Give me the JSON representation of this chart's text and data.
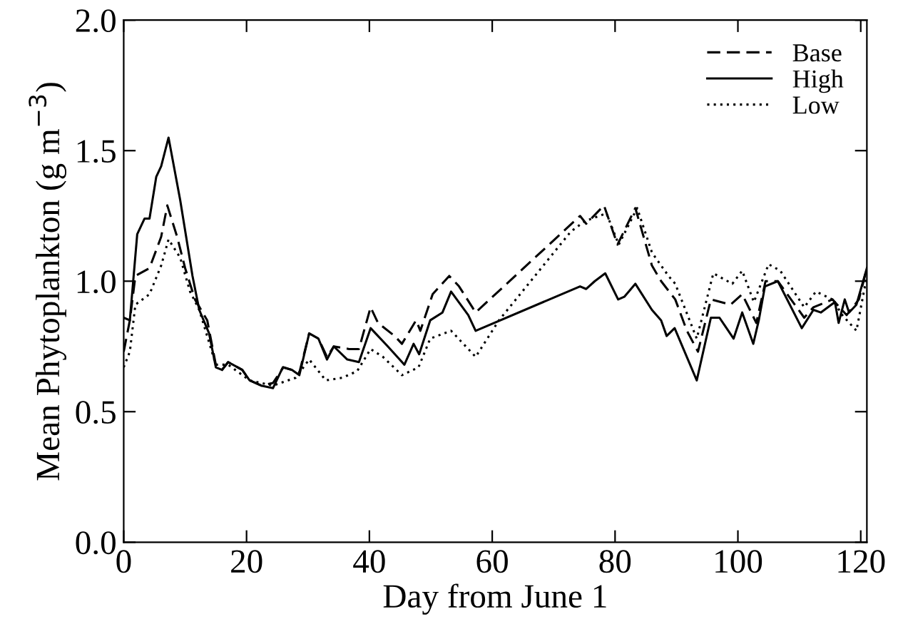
{
  "chart_data": {
    "type": "line",
    "xlabel": "Day from June 1",
    "ylabel": "Mean Phytoplankton (g m$^{−3}$)",
    "xlim": [
      0,
      121
    ],
    "ylim": [
      0,
      2.0
    ],
    "xticks": [
      0,
      20,
      40,
      60,
      80,
      100,
      120
    ],
    "yticks": [
      {
        "value": 0,
        "label": "0.0"
      },
      0.5,
      {
        "value": 1,
        "label": "1.0"
      },
      1.5,
      {
        "value": 2,
        "label": "2.0"
      }
    ],
    "grid": false,
    "legend": "top right",
    "series": [
      {
        "name": "Base",
        "color": "#000000",
        "line_style": "dashed",
        "x": [
          0,
          1,
          1.9,
          4.2,
          6.1,
          7.1,
          8.7,
          10,
          11.6,
          13.6,
          15,
          16,
          17,
          19.3,
          20.5,
          22.4,
          24.3,
          26,
          27.4,
          28.6,
          30.2,
          31.7,
          33.1,
          34.2,
          36.7,
          38.3,
          40.2,
          41.4,
          44.1,
          45.3,
          47.6,
          48.3,
          50.3,
          53,
          54.6,
          57.3,
          74.3,
          75.3,
          78.2,
          80.4,
          83.3,
          86,
          87.5,
          89.8,
          91.7,
          93.5,
          95.6,
          98.8,
          100.7,
          103,
          104.5,
          106.5,
          110.8,
          112.3,
          115.4,
          117.7,
          119.7,
          121
        ],
        "values": [
          0.73,
          0.85,
          1.02,
          1.05,
          1.17,
          1.29,
          1.17,
          1.05,
          0.93,
          0.85,
          0.68,
          0.66,
          0.69,
          0.66,
          0.62,
          0.6,
          0.61,
          0.67,
          0.66,
          0.65,
          0.8,
          0.78,
          0.71,
          0.75,
          0.74,
          0.74,
          0.9,
          0.84,
          0.79,
          0.76,
          0.85,
          0.81,
          0.95,
          1.02,
          0.98,
          0.88,
          1.25,
          1.22,
          1.29,
          1.14,
          1.28,
          1.06,
          1.0,
          0.93,
          0.81,
          0.73,
          0.93,
          0.91,
          0.95,
          0.84,
          1.0,
          1.0,
          0.86,
          0.9,
          0.93,
          0.87,
          0.93,
          1.05
        ]
      },
      {
        "name": "High",
        "color": "#000000",
        "line_style": "solid",
        "x": [
          0,
          1,
          2.2,
          3.4,
          4.2,
          5.3,
          6.1,
          7.3,
          9.2,
          11.2,
          12.3,
          13.9,
          15,
          16,
          17,
          19.3,
          20.5,
          22.4,
          24.3,
          25.9,
          27.4,
          28.6,
          30.2,
          31.7,
          33.1,
          34.2,
          36.4,
          38.3,
          40.2,
          43,
          45.7,
          47.2,
          48.1,
          49.9,
          51.9,
          53.3,
          56.1,
          57.3,
          74.3,
          75.3,
          76.7,
          78.4,
          80.5,
          81.5,
          83.3,
          86,
          87.5,
          88.4,
          89.7,
          93.3,
          95.6,
          97,
          99.3,
          100.7,
          102.5,
          103.4,
          104.4,
          106.5,
          110.4,
          112.3,
          113.5,
          115.8,
          116.4,
          117.4,
          118.1,
          119.3,
          121
        ],
        "values": [
          0.86,
          0.85,
          1.18,
          1.24,
          1.24,
          1.4,
          1.44,
          1.55,
          1.31,
          1.02,
          0.89,
          0.8,
          0.67,
          0.66,
          0.69,
          0.66,
          0.62,
          0.6,
          0.59,
          0.67,
          0.66,
          0.64,
          0.8,
          0.78,
          0.7,
          0.75,
          0.7,
          0.69,
          0.82,
          0.75,
          0.68,
          0.76,
          0.72,
          0.85,
          0.88,
          0.96,
          0.87,
          0.81,
          0.98,
          0.97,
          1.0,
          1.03,
          0.93,
          0.94,
          0.99,
          0.89,
          0.85,
          0.79,
          0.82,
          0.62,
          0.86,
          0.86,
          0.78,
          0.88,
          0.76,
          0.85,
          0.98,
          1.0,
          0.82,
          0.89,
          0.88,
          0.92,
          0.84,
          0.93,
          0.88,
          0.91,
          1.05
        ]
      },
      {
        "name": "Low",
        "color": "#000000",
        "line_style": "dotted",
        "x": [
          0,
          1,
          1.9,
          4.2,
          6.1,
          7.3,
          9.2,
          10.8,
          12.3,
          15,
          17,
          20.5,
          24.3,
          28,
          30.2,
          32.9,
          35.6,
          38,
          40.2,
          42.2,
          45.3,
          48,
          49.9,
          53.3,
          57.3,
          61.1,
          72.8,
          75.1,
          78.6,
          80.6,
          83.6,
          86,
          88.7,
          89.8,
          93.3,
          96,
          99.1,
          100.7,
          102.6,
          105,
          106.9,
          110.8,
          112.7,
          115.4,
          117,
          119.3,
          121
        ],
        "values": [
          0.67,
          0.73,
          0.91,
          0.95,
          1.06,
          1.16,
          1.09,
          0.96,
          0.89,
          0.68,
          0.68,
          0.62,
          0.6,
          0.63,
          0.7,
          0.62,
          0.63,
          0.655,
          0.74,
          0.71,
          0.64,
          0.67,
          0.78,
          0.81,
          0.71,
          0.85,
          1.19,
          1.23,
          1.26,
          1.14,
          1.28,
          1.11,
          1.02,
          0.99,
          0.78,
          1.03,
          0.99,
          1.04,
          0.92,
          1.065,
          1.04,
          0.9,
          0.96,
          0.93,
          0.87,
          0.81,
          1.02
        ]
      }
    ]
  }
}
